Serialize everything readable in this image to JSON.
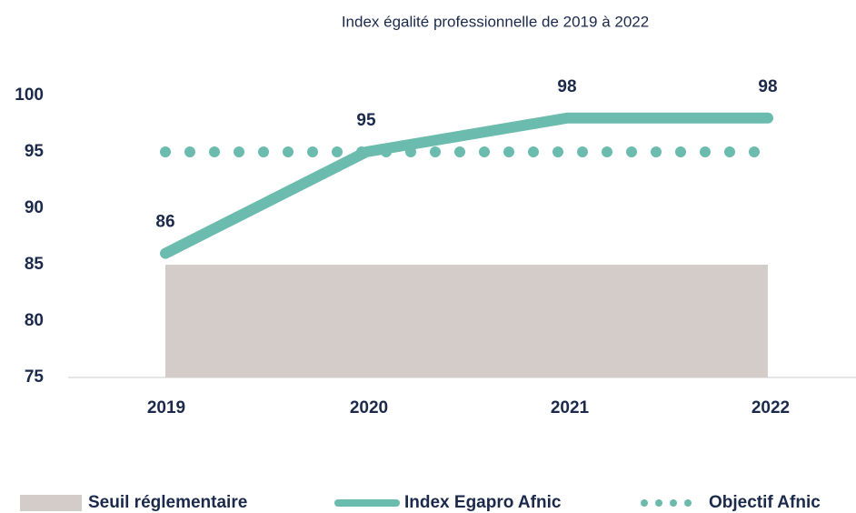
{
  "chart_data": {
    "type": "line",
    "title": "Index égalité professionnelle de 2019 à 2022",
    "categories": [
      "2019",
      "2020",
      "2021",
      "2022"
    ],
    "series": [
      {
        "name": "Seuil réglementaire",
        "color": "#d3ccc8",
        "style": "area",
        "values": [
          85,
          85,
          85,
          85
        ]
      },
      {
        "name": "Index Egapro Afnic",
        "color": "#6bbcae",
        "style": "solid",
        "values": [
          86,
          95,
          98,
          98
        ],
        "data_labels": true
      },
      {
        "name": "Objectif Afnic",
        "color": "#6bbcae",
        "style": "dotted",
        "values": [
          95,
          95,
          95,
          95
        ]
      }
    ],
    "ylim": [
      75,
      100
    ],
    "yticks": [
      75,
      80,
      85,
      90,
      95,
      100
    ],
    "grid": false,
    "legend": "bottom"
  }
}
